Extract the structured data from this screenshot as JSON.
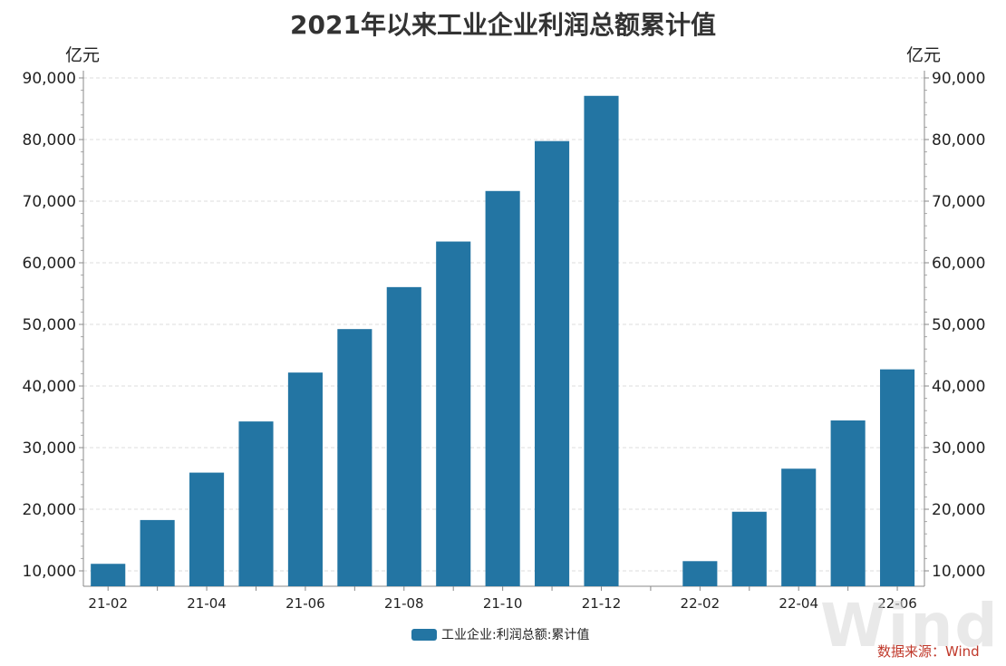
{
  "chart_data": {
    "type": "bar",
    "title": "2021年以来工业企业利润总额累计值",
    "ylabel_left": "亿元",
    "ylabel_right": "亿元",
    "ylim": [
      7500,
      90000
    ],
    "yticks": [
      10000,
      20000,
      30000,
      40000,
      50000,
      60000,
      70000,
      80000,
      90000
    ],
    "ytick_labels": [
      "10,000",
      "20,000",
      "30,000",
      "40,000",
      "50,000",
      "60,000",
      "70,000",
      "80,000",
      "90,000"
    ],
    "categories": [
      "21-02",
      "21-03",
      "21-04",
      "21-05",
      "21-06",
      "21-07",
      "21-08",
      "21-09",
      "21-10",
      "21-11",
      "21-12",
      "22-01",
      "22-02",
      "22-03",
      "22-04",
      "22-05",
      "22-06"
    ],
    "xtick_labels": [
      "21-02",
      "21-04",
      "21-06",
      "21-08",
      "21-10",
      "21-12",
      "22-02",
      "22-04",
      "22-06"
    ],
    "series": [
      {
        "name": "工业企业:利润总额:累计值",
        "color": "#2375a3",
        "values": [
          11140,
          18250,
          25943,
          34247,
          42183,
          49240,
          56051,
          63448,
          71649,
          79750,
          87092,
          null,
          11575,
          19593,
          26582,
          34410,
          42702
        ]
      }
    ],
    "grid": true,
    "legend_position": "bottom-center"
  },
  "source": "数据来源：Wind",
  "watermark": "Wind"
}
